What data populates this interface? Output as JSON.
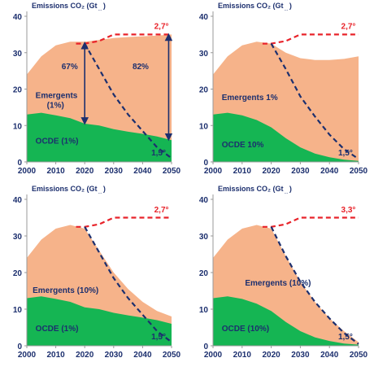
{
  "chart_data": [
    {
      "type": "area",
      "title": "Emissions CO₂ (Gt",
      "x_ticks": [
        "2000",
        "2010",
        "2020",
        "2030",
        "2040",
        "2050"
      ],
      "y_ticks": [
        "0",
        "10",
        "20",
        "30",
        "40"
      ],
      "xlim": [
        2000,
        2050
      ],
      "ylim": [
        0,
        40
      ],
      "series": [
        {
          "name": "OCDE",
          "label": "OCDE (1%)",
          "x": [
            2000,
            2005,
            2010,
            2015,
            2020,
            2025,
            2030,
            2035,
            2040,
            2045,
            2050
          ],
          "values": [
            13.0,
            13.5,
            12.8,
            12.0,
            10.5,
            10.0,
            9.0,
            8.3,
            7.7,
            7.0,
            6.0
          ]
        },
        {
          "name": "Emergents",
          "label": "Emergents\n(1%)",
          "x": [
            2000,
            2005,
            2010,
            2015,
            2020,
            2025,
            2030,
            2035,
            2040,
            2045,
            2050
          ],
          "values": [
            24.0,
            29.0,
            32.0,
            33.0,
            33.0,
            33.5,
            34.0,
            34.3,
            34.5,
            34.7,
            35.0
          ]
        }
      ],
      "scenario_2_7": {
        "label": "2,7°",
        "x": [
          2017,
          2020,
          2025,
          2030,
          2040,
          2050
        ],
        "values": [
          32.5,
          32.5,
          33.2,
          35.0,
          35.0,
          35.0
        ]
      },
      "scenario_1_5": {
        "label": "1,5°",
        "x": [
          2020,
          2025,
          2030,
          2035,
          2040,
          2045,
          2050
        ],
        "values": [
          32.5,
          25.5,
          18.5,
          13.0,
          8.5,
          4.0,
          1.0
        ]
      },
      "annotations": [
        "67%",
        "82%"
      ]
    },
    {
      "type": "area",
      "title": "Emissions CO₂ (Gt",
      "x_ticks": [
        "2000",
        "2010",
        "2020",
        "2030",
        "2040",
        "2050"
      ],
      "y_ticks": [
        "0",
        "10",
        "20",
        "30",
        "40"
      ],
      "xlim": [
        2000,
        2050
      ],
      "ylim": [
        0,
        40
      ],
      "series": [
        {
          "name": "OCDE",
          "label": "OCDE 10%",
          "x": [
            2000,
            2005,
            2010,
            2015,
            2020,
            2025,
            2030,
            2035,
            2040,
            2045,
            2050
          ],
          "values": [
            13.0,
            13.5,
            12.8,
            11.5,
            9.5,
            6.5,
            4.0,
            2.3,
            1.3,
            0.6,
            0.3
          ]
        },
        {
          "name": "Emergents",
          "label": "Emergents 1%",
          "x": [
            2000,
            2005,
            2010,
            2015,
            2020,
            2025,
            2030,
            2035,
            2040,
            2045,
            2050
          ],
          "values": [
            24.0,
            29.0,
            32.0,
            33.0,
            32.5,
            30.0,
            28.5,
            28.0,
            28.0,
            28.3,
            29.0
          ]
        }
      ],
      "scenario_2_7": {
        "label": "2,7°",
        "x": [
          2017,
          2020,
          2025,
          2030,
          2040,
          2050
        ],
        "values": [
          32.5,
          32.5,
          33.2,
          35.0,
          35.0,
          35.0
        ]
      },
      "scenario_1_5": {
        "label": "1,5°",
        "x": [
          2020,
          2025,
          2030,
          2035,
          2040,
          2045,
          2050
        ],
        "values": [
          32.5,
          25.5,
          18.0,
          12.5,
          7.5,
          3.5,
          0.8
        ]
      },
      "annotations": []
    },
    {
      "type": "area",
      "title": "Emissions CO₂ (Gt",
      "x_ticks": [
        "2000",
        "2010",
        "2020",
        "2030",
        "2040",
        "2050"
      ],
      "y_ticks": [
        "0",
        "10",
        "20",
        "30",
        "40"
      ],
      "xlim": [
        2000,
        2050
      ],
      "ylim": [
        0,
        40
      ],
      "series": [
        {
          "name": "OCDE",
          "label": "OCDE (1%)",
          "x": [
            2000,
            2005,
            2010,
            2015,
            2020,
            2025,
            2030,
            2035,
            2040,
            2045,
            2050
          ],
          "values": [
            13.0,
            13.5,
            12.8,
            12.0,
            10.5,
            10.0,
            9.0,
            8.3,
            7.7,
            7.0,
            6.0
          ]
        },
        {
          "name": "Emergents",
          "label": "Emergents (10%)",
          "x": [
            2000,
            2005,
            2010,
            2015,
            2020,
            2025,
            2030,
            2035,
            2040,
            2045,
            2050
          ],
          "values": [
            24.0,
            29.0,
            32.0,
            33.0,
            32.0,
            26.0,
            20.0,
            15.5,
            12.0,
            9.5,
            8.0
          ]
        }
      ],
      "scenario_2_7": {
        "label": "2,7°",
        "x": [
          2017,
          2020,
          2025,
          2030,
          2040,
          2050
        ],
        "values": [
          32.5,
          32.5,
          33.2,
          35.0,
          35.0,
          35.0
        ]
      },
      "scenario_1_5": {
        "label": "1,5°",
        "x": [
          2020,
          2025,
          2030,
          2035,
          2040,
          2045,
          2050
        ],
        "values": [
          32.5,
          25.5,
          18.5,
          13.0,
          8.5,
          4.0,
          1.0
        ]
      },
      "annotations": []
    },
    {
      "type": "area",
      "title": "Emissions CO₂ (Gt",
      "x_ticks": [
        "2000",
        "2010",
        "2020",
        "2030",
        "2040",
        "2050"
      ],
      "y_ticks": [
        "0",
        "10",
        "20",
        "30",
        "40"
      ],
      "xlim": [
        2000,
        2050
      ],
      "ylim": [
        0,
        40
      ],
      "series": [
        {
          "name": "OCDE",
          "label": "OCDE (10%)",
          "x": [
            2000,
            2005,
            2010,
            2015,
            2020,
            2025,
            2030,
            2035,
            2040,
            2045,
            2050
          ],
          "values": [
            13.0,
            13.5,
            12.8,
            11.5,
            9.5,
            6.5,
            4.0,
            2.3,
            1.3,
            0.6,
            0.3
          ]
        },
        {
          "name": "Emergents",
          "label": "Emergents (10%)",
          "x": [
            2000,
            2005,
            2010,
            2015,
            2020,
            2025,
            2030,
            2035,
            2040,
            2045,
            2050
          ],
          "values": [
            24.0,
            29.0,
            32.0,
            33.0,
            32.0,
            24.5,
            17.5,
            12.0,
            7.5,
            4.0,
            1.0
          ]
        }
      ],
      "scenario_2_7": {
        "label": "3,3°",
        "x": [
          2017,
          2020,
          2025,
          2030,
          2040,
          2050
        ],
        "values": [
          32.5,
          32.5,
          33.2,
          35.0,
          35.0,
          35.0
        ]
      },
      "scenario_1_5": {
        "label": "1,5°",
        "x": [
          2020,
          2025,
          2030,
          2035,
          2040,
          2045,
          2050
        ],
        "values": [
          32.5,
          24.5,
          17.5,
          12.0,
          7.5,
          3.5,
          0.5
        ]
      },
      "annotations": []
    }
  ],
  "colors": {
    "ocde": "#15b553",
    "emergents": "#f6b38a",
    "scenario_2_7": "#e8232a",
    "scenario_1_5": "#1c2f6e",
    "text": "#1c2f6e",
    "axis": "#999999"
  }
}
